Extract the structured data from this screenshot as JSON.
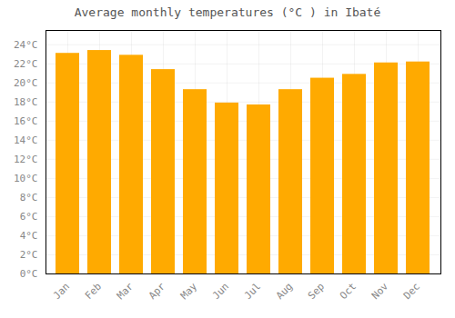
{
  "chart_data": {
    "type": "bar",
    "title": "Average monthly temperatures (°C ) in Ibaté",
    "categories": [
      "Jan",
      "Feb",
      "Mar",
      "Apr",
      "May",
      "Jun",
      "Jul",
      "Aug",
      "Sep",
      "Oct",
      "Nov",
      "Dec"
    ],
    "values": [
      23.1,
      23.4,
      22.9,
      21.4,
      19.3,
      17.9,
      17.7,
      19.3,
      20.5,
      20.9,
      22.1,
      22.2
    ],
    "color": "#FFAA00",
    "ylim": [
      0,
      25.5
    ],
    "yticks": [
      {
        "value": 0,
        "label": "0°C"
      },
      {
        "value": 2,
        "label": "2°C"
      },
      {
        "value": 4,
        "label": "4°C"
      },
      {
        "value": 6,
        "label": "6°C"
      },
      {
        "value": 8,
        "label": "8°C"
      },
      {
        "value": 10,
        "label": "10°C"
      },
      {
        "value": 12,
        "label": "12°C"
      },
      {
        "value": 14,
        "label": "14°C"
      },
      {
        "value": 16,
        "label": "16°C"
      },
      {
        "value": 18,
        "label": "18°C"
      },
      {
        "value": 20,
        "label": "20°C"
      },
      {
        "value": 22,
        "label": "22°C"
      },
      {
        "value": 24,
        "label": "24°C"
      }
    ],
    "grid": true
  }
}
